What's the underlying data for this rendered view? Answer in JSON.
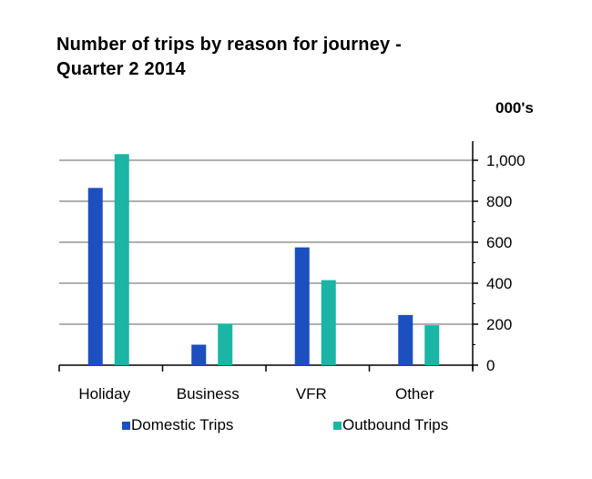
{
  "chart_data": {
    "type": "bar",
    "title_line1": "Number of trips by reason for journey -",
    "title_line2": "Quarter 2 2014",
    "unit_label": "000's",
    "categories": [
      "Holiday",
      "Business",
      "VFR",
      "Other"
    ],
    "series": [
      {
        "name": "Domestic Trips",
        "legend_label": "Domestic Trips",
        "color": "#1c4fc0",
        "values": [
          865,
          100,
          575,
          245
        ]
      },
      {
        "name": "Outbound Trips",
        "legend_label": "Outbound Trips",
        "color": "#1ab5a5",
        "values": [
          1030,
          200,
          415,
          195
        ]
      }
    ],
    "y_ticks": [
      0,
      200,
      400,
      600,
      800,
      1000
    ],
    "y_tick_labels": [
      "0",
      "200",
      "400",
      "600",
      "800",
      "1,000"
    ],
    "ylim": [
      0,
      1100
    ],
    "y_axis_side": "right",
    "grid": true,
    "legend_position": "bottom"
  }
}
